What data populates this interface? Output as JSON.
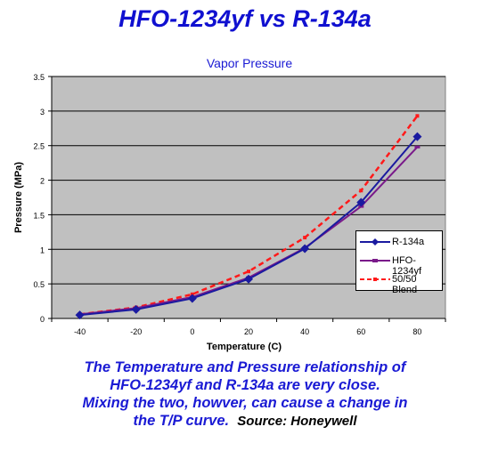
{
  "title": "HFO-1234yf vs R-134a",
  "caption": {
    "lines": [
      "The Temperature and Pressure relationship of",
      "HFO-1234yf and R-134a are very close.",
      "Mixing the two, howver, can cause a change in",
      "the T/P curve."
    ],
    "source": "Source: Honeywell"
  },
  "chart_data": {
    "type": "line",
    "title": "Vapor Pressure",
    "xlabel": "Temperature (C)",
    "ylabel": "Pressure (MPa)",
    "x": [
      -40,
      -20,
      0,
      20,
      40,
      60,
      80
    ],
    "xticks": [
      "-40",
      "-20",
      "0",
      "20",
      "40",
      "60",
      "80"
    ],
    "yticks": [
      "0",
      "0.5",
      "1",
      "1.5",
      "2",
      "2.5",
      "3",
      "3.5"
    ],
    "ylim": [
      0,
      3.5
    ],
    "grid": "horizontal",
    "legend": "right",
    "plot_background": "#c0c0c0",
    "series": [
      {
        "name": "R-134a",
        "color": "#1a1aa0",
        "style": "solid",
        "marker": "diamond",
        "values": [
          0.05,
          0.13,
          0.29,
          0.57,
          1.01,
          1.68,
          2.63
        ]
      },
      {
        "name": "HFO-1234yf",
        "color": "#7a1a8a",
        "style": "solid",
        "marker": "dash",
        "values": [
          0.06,
          0.15,
          0.31,
          0.59,
          1.02,
          1.62,
          2.48
        ]
      },
      {
        "name": "50/50 Blend",
        "color": "#ff1a1a",
        "style": "dashed",
        "marker": "square",
        "values": [
          0.06,
          0.16,
          0.35,
          0.68,
          1.17,
          1.85,
          2.93
        ]
      }
    ]
  }
}
